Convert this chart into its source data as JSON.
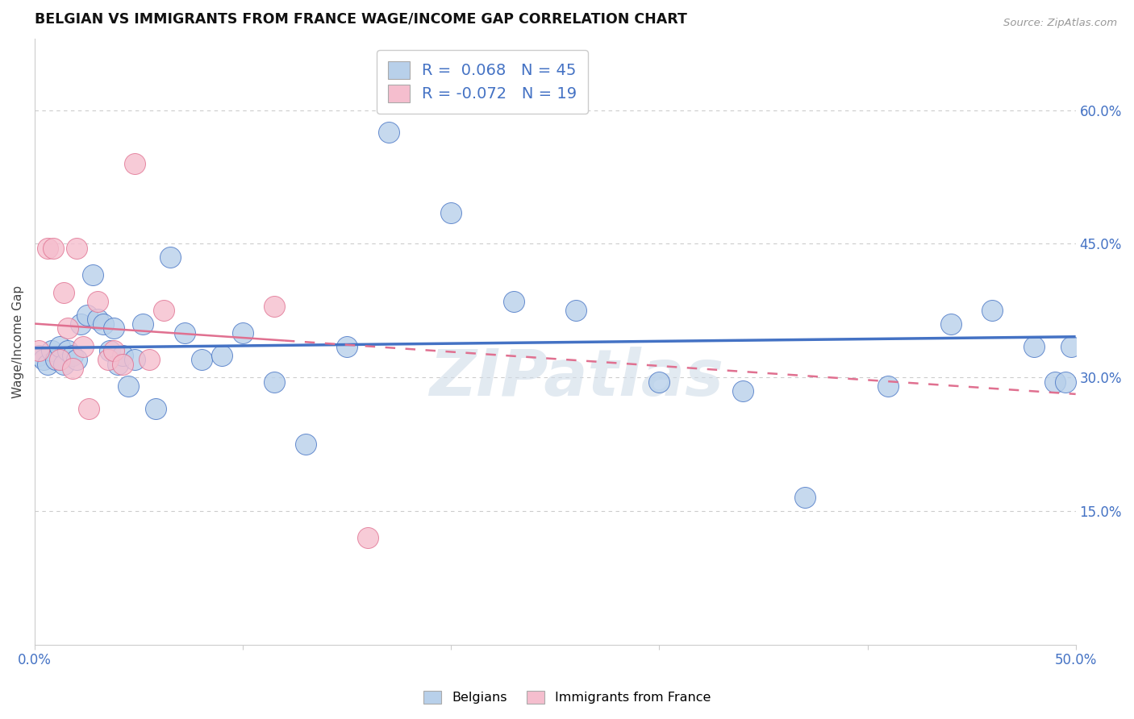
{
  "title": "BELGIAN VS IMMIGRANTS FROM FRANCE WAGE/INCOME GAP CORRELATION CHART",
  "source": "Source: ZipAtlas.com",
  "ylabel": "Wage/Income Gap",
  "xlim": [
    0.0,
    0.5
  ],
  "ylim": [
    0.0,
    0.68
  ],
  "yticks": [
    0.15,
    0.3,
    0.45,
    0.6
  ],
  "right_ytick_labels": [
    "15.0%",
    "30.0%",
    "45.0%",
    "60.0%"
  ],
  "xticks": [
    0.0,
    0.1,
    0.2,
    0.3,
    0.4,
    0.5
  ],
  "xtick_labels": [
    "0.0%",
    "",
    "",
    "",
    "",
    "50.0%"
  ],
  "belgian_R": 0.068,
  "belgian_N": 45,
  "france_R": -0.072,
  "france_N": 19,
  "belgian_color": "#b8d0ea",
  "france_color": "#f5bece",
  "belgian_line_color": "#4472c4",
  "france_line_color": "#e07090",
  "background_color": "#ffffff",
  "grid_color": "#cccccc",
  "watermark": "ZIPatlas",
  "belgians_x": [
    0.002,
    0.004,
    0.006,
    0.008,
    0.01,
    0.012,
    0.014,
    0.016,
    0.018,
    0.02,
    0.022,
    0.025,
    0.028,
    0.03,
    0.033,
    0.036,
    0.038,
    0.04,
    0.042,
    0.045,
    0.048,
    0.052,
    0.058,
    0.065,
    0.072,
    0.08,
    0.09,
    0.1,
    0.115,
    0.13,
    0.15,
    0.17,
    0.2,
    0.23,
    0.26,
    0.3,
    0.34,
    0.37,
    0.41,
    0.44,
    0.46,
    0.48,
    0.49,
    0.495,
    0.498
  ],
  "belgians_y": [
    0.325,
    0.32,
    0.315,
    0.33,
    0.32,
    0.335,
    0.315,
    0.33,
    0.325,
    0.32,
    0.36,
    0.37,
    0.415,
    0.365,
    0.36,
    0.33,
    0.355,
    0.315,
    0.325,
    0.29,
    0.32,
    0.36,
    0.265,
    0.435,
    0.35,
    0.32,
    0.325,
    0.35,
    0.295,
    0.225,
    0.335,
    0.575,
    0.485,
    0.385,
    0.375,
    0.295,
    0.285,
    0.165,
    0.29,
    0.36,
    0.375,
    0.335,
    0.295,
    0.295,
    0.335
  ],
  "france_x": [
    0.002,
    0.006,
    0.009,
    0.012,
    0.014,
    0.016,
    0.018,
    0.02,
    0.023,
    0.026,
    0.03,
    0.035,
    0.038,
    0.042,
    0.048,
    0.055,
    0.062,
    0.115,
    0.16
  ],
  "france_y": [
    0.33,
    0.445,
    0.445,
    0.32,
    0.395,
    0.355,
    0.31,
    0.445,
    0.335,
    0.265,
    0.385,
    0.32,
    0.33,
    0.315,
    0.54,
    0.32,
    0.375,
    0.38,
    0.12
  ]
}
